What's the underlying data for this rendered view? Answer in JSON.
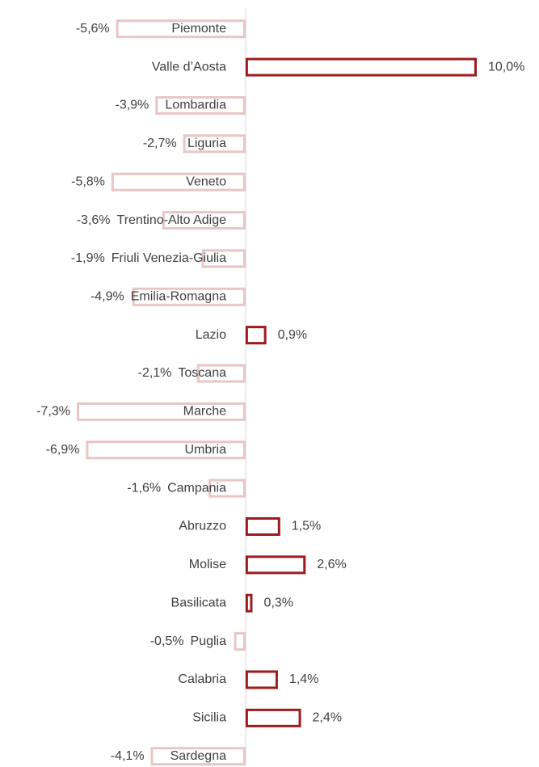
{
  "chart_data": {
    "type": "bar",
    "orientation": "horizontal",
    "categories": [
      "Piemonte",
      "Valle d’Aosta",
      "Lombardia",
      "Liguria",
      "Veneto",
      "Trentino-Alto Adige",
      "Friuli Venezia-Giulia",
      "Emilia-Romagna",
      "Lazio",
      "Toscana",
      "Marche",
      "Umbria",
      "Campania",
      "Abruzzo",
      "Molise",
      "Basilicata",
      "Puglia",
      "Calabria",
      "Sicilia",
      "Sardegna"
    ],
    "values": [
      -5.6,
      10.0,
      -3.9,
      -2.7,
      -5.8,
      -3.6,
      -1.9,
      -4.9,
      0.9,
      -2.1,
      -7.3,
      -6.9,
      -1.6,
      1.5,
      2.6,
      0.3,
      -0.5,
      1.4,
      2.4,
      -4.1
    ],
    "value_labels": [
      "-5,6%",
      "10,0%",
      "-3,9%",
      "-2,7%",
      "-5,8%",
      "-3,6%",
      "-1,9%",
      "-4,9%",
      "0,9%",
      "-2,1%",
      "-7,3%",
      "-6,9%",
      "-1,6%",
      "1,5%",
      "2,6%",
      "0,3%",
      "-0,5%",
      "1,4%",
      "2,4%",
      "-4,1%"
    ],
    "positive_color": "#9b1c1c",
    "negative_color": "#e8c6c6",
    "xlim": [
      -7.3,
      10.0
    ]
  }
}
